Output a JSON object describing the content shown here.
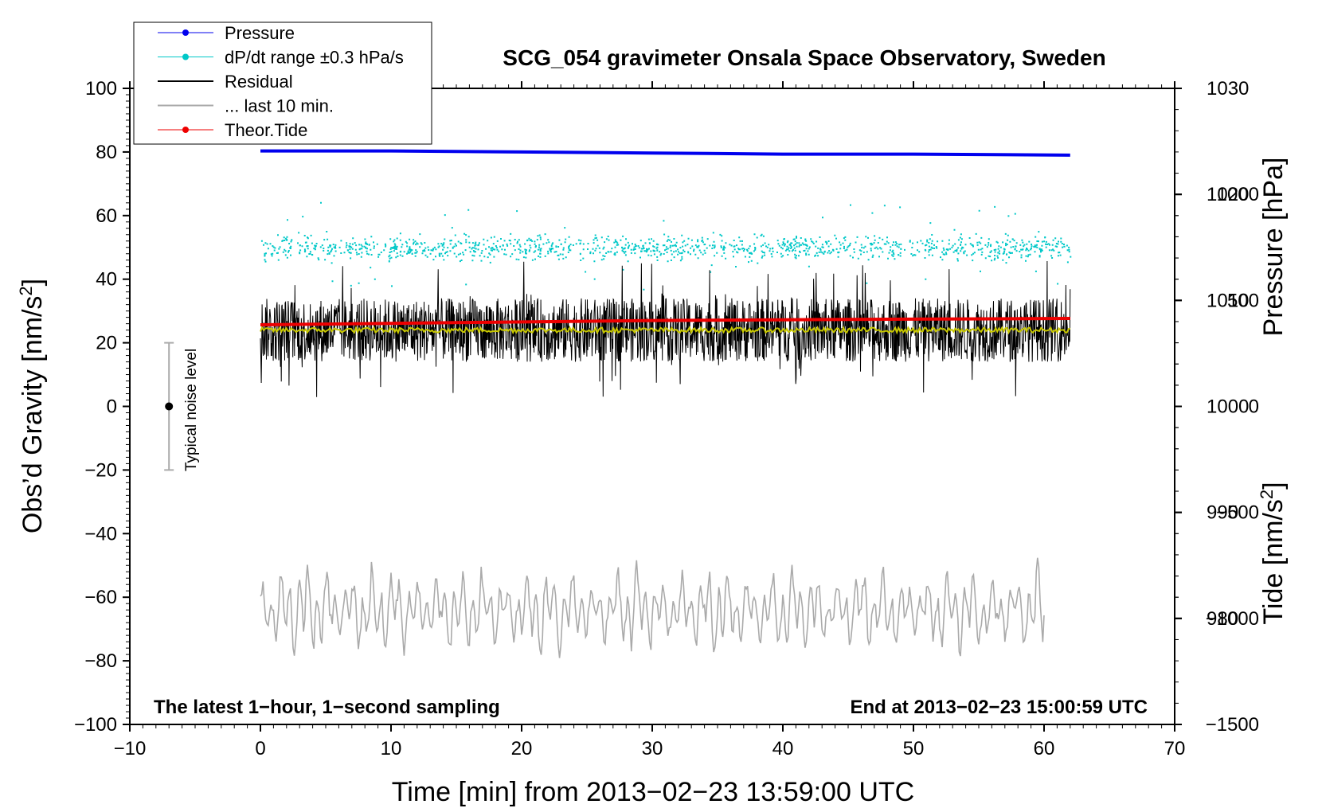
{
  "chart_data": {
    "type": "line",
    "title": "SCG_054 gravimeter Onsala Space Observatory, Sweden",
    "xlabel": "Time [min] from 2013−02−23 13:59:00 UTC",
    "ylabel_left": "Obs’d Gravity [nm/s",
    "ylabel_left_sup": "2",
    "ylabel_left_close": "]",
    "ylabel_right_pressure": "Pressure [hPa]",
    "ylabel_right_tide": "Tide [nm/s",
    "ylabel_right_tide_sup": "2",
    "ylabel_right_tide_close": "]",
    "xlim": [
      -10,
      70
    ],
    "ylim": [
      -100,
      100
    ],
    "x_ticks": [
      {
        "value": -10,
        "label": "−10"
      },
      {
        "value": 0,
        "label": "0"
      },
      {
        "value": 10,
        "label": "10"
      },
      {
        "value": 20,
        "label": "20"
      },
      {
        "value": 30,
        "label": "30"
      },
      {
        "value": 40,
        "label": "40"
      },
      {
        "value": 50,
        "label": "50"
      },
      {
        "value": 60,
        "label": "60"
      },
      {
        "value": 70,
        "label": "70"
      }
    ],
    "y_ticks": [
      {
        "value": 100,
        "label": "100"
      },
      {
        "value": 80,
        "label": "80"
      },
      {
        "value": 60,
        "label": "60"
      },
      {
        "value": 40,
        "label": "40"
      },
      {
        "value": 20,
        "label": "20"
      },
      {
        "value": 0,
        "label": "0"
      },
      {
        "value": -20,
        "label": "−20"
      },
      {
        "value": -40,
        "label": "−40"
      },
      {
        "value": -60,
        "label": "−60"
      },
      {
        "value": -80,
        "label": "−80"
      },
      {
        "value": -100,
        "label": "−100"
      }
    ],
    "pressure_axis": {
      "range": [
        970,
        1030
      ],
      "ticks": [
        {
          "value": 1030,
          "label": "1030"
        },
        {
          "value": 1020,
          "label": "1020"
        },
        {
          "value": 1010,
          "label": "1010"
        },
        {
          "value": 1000,
          "label": "1000"
        },
        {
          "value": 990,
          "label": "990"
        },
        {
          "value": 980,
          "label": "980"
        }
      ]
    },
    "tide_axis": {
      "range": [
        -1500,
        1500
      ],
      "ticks": [
        {
          "value": 1000,
          "label": "1000"
        },
        {
          "value": 500,
          "label": "500"
        },
        {
          "value": 0,
          "label": "0"
        },
        {
          "value": -500,
          "label": "−500"
        },
        {
          "value": -1000,
          "label": "−1000"
        },
        {
          "value": -1500,
          "label": "−1500"
        }
      ]
    },
    "series": [
      {
        "name": "Pressure",
        "kind": "line-marker",
        "color": "#0000ee",
        "axis": "pressure",
        "x": [
          0,
          10,
          20,
          30,
          40,
          50,
          62
        ],
        "values": [
          1024.1,
          1024.1,
          1024.0,
          1023.9,
          1023.8,
          1023.8,
          1023.7
        ]
      },
      {
        "name": "dP/dt range ±0.3 hPa/s",
        "kind": "scatter",
        "color": "#00c8c8",
        "axis": "gravity",
        "center": 50,
        "spread": 3
      },
      {
        "name": "Residual",
        "kind": "line",
        "color": "#000000",
        "axis": "gravity",
        "center": 24,
        "spread": 10
      },
      {
        "name": "... last 10 min.",
        "kind": "line",
        "color": "#aaaaaa",
        "axis": "gravity",
        "center": -64,
        "spread": 9
      },
      {
        "name": "Theor.Tide",
        "kind": "line-marker",
        "color": "#ee0000",
        "axis": "tide",
        "x": [
          0,
          15,
          30,
          45,
          62
        ],
        "values": [
          385,
          395,
          405,
          410,
          415
        ]
      }
    ],
    "mean_line": {
      "color": "#c8c800",
      "center": 24
    },
    "noise_level": {
      "label": "Typical noise level",
      "x": -7,
      "center": 0,
      "low": -20,
      "high": 20
    },
    "note_left": "The latest 1−hour, 1−second sampling",
    "note_right": "End at 2013−02−23 15:00:59 UTC"
  }
}
